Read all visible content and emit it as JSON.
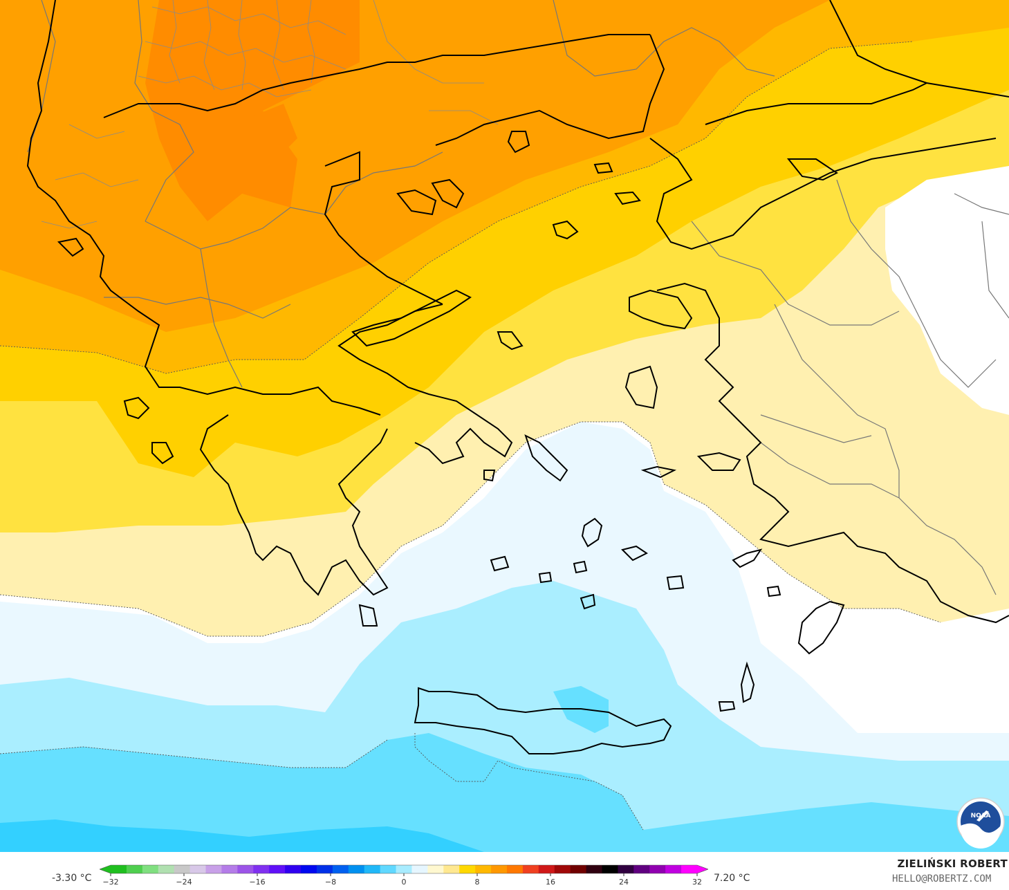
{
  "legend": {
    "min_label": "-3.30 °C",
    "max_label": "7.20 °C",
    "ticks": [
      "−32",
      "−24",
      "−16",
      "−8",
      "0",
      "8",
      "16",
      "24",
      "32"
    ],
    "tick_values": [
      -32,
      -24,
      -16,
      -8,
      0,
      8,
      16,
      24,
      32
    ],
    "range": [
      -32,
      32
    ],
    "step": 2,
    "colors": [
      "#1fbf1f",
      "#4fcf4f",
      "#80df80",
      "#b0e0b0",
      "#c8c8c8",
      "#d8c8e8",
      "#c8a0e8",
      "#b47ce8",
      "#9c54e8",
      "#8030f0",
      "#6010f8",
      "#3000f0",
      "#0008f0",
      "#0030e8",
      "#0060f0",
      "#0090f0",
      "#20b8f8",
      "#60d8ff",
      "#a8ecff",
      "#e6f6ff",
      "#fff8d0",
      "#ffe890",
      "#ffd800",
      "#ffb800",
      "#ff9800",
      "#ff7800",
      "#f04020",
      "#d01818",
      "#a00808",
      "#700000",
      "#300010",
      "#000000",
      "#300040",
      "#600080",
      "#9000b0",
      "#c000e0",
      "#ff00ff"
    ]
  },
  "credit": {
    "name": "ZIELIŃSKI ROBERT",
    "email": "HELLO@ROBERTZ.COM"
  },
  "map": {
    "variable": "temperature",
    "unit": "°C",
    "region": "Balkans / Aegean Sea",
    "logo": "NOAA",
    "bands": [
      {
        "id": "orange-deep",
        "color": "#ff8c00"
      },
      {
        "id": "orange",
        "color": "#ffa000"
      },
      {
        "id": "orange-light",
        "color": "#ffb800"
      },
      {
        "id": "yellow-deep",
        "color": "#ffd000"
      },
      {
        "id": "yellow",
        "color": "#ffe240"
      },
      {
        "id": "pale-yellow",
        "color": "#fff0b0"
      },
      {
        "id": "white",
        "color": "#ffffff"
      },
      {
        "id": "pale-blue",
        "color": "#eaf8ff"
      },
      {
        "id": "light-cyan",
        "color": "#aaeeff"
      },
      {
        "id": "cyan",
        "color": "#66e0ff"
      },
      {
        "id": "cyan-deep",
        "color": "#33d0ff"
      }
    ]
  }
}
